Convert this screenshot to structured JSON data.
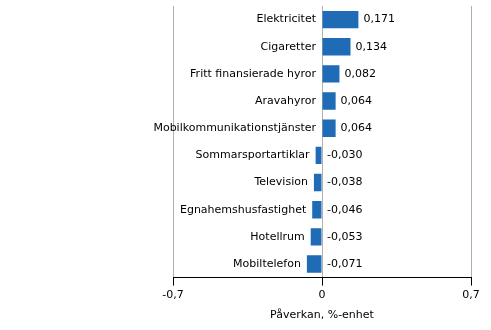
{
  "chart_data": {
    "type": "bar",
    "orientation": "horizontal",
    "x_label": "Påverkan, %-enhet",
    "categories": [
      "Elektricitet",
      "Cigaretter",
      "Fritt finansierade hyror",
      "Aravahyror",
      "Mobilkommunikationstjänster",
      "Sommarsportartiklar",
      "Television",
      "Egnahemshusfastighet",
      "Hotellrum",
      "Mobiltelefon"
    ],
    "values": [
      0.171,
      0.134,
      0.082,
      0.064,
      0.064,
      -0.03,
      -0.038,
      -0.046,
      -0.053,
      -0.071
    ],
    "value_labels": [
      "0,171",
      "0,134",
      "0,082",
      "0,064",
      "0,064",
      "-0,030",
      "-0,038",
      "-0,046",
      "-0,053",
      "-0,071"
    ],
    "data_labels": true,
    "color": "#1f6bb5",
    "xlim": [
      -0.7,
      0.7
    ],
    "xticks": [
      {
        "value": -0.7,
        "label": "-0,7"
      },
      0,
      {
        "value": 0.7,
        "label": "0,7"
      }
    ],
    "grid": true
  }
}
